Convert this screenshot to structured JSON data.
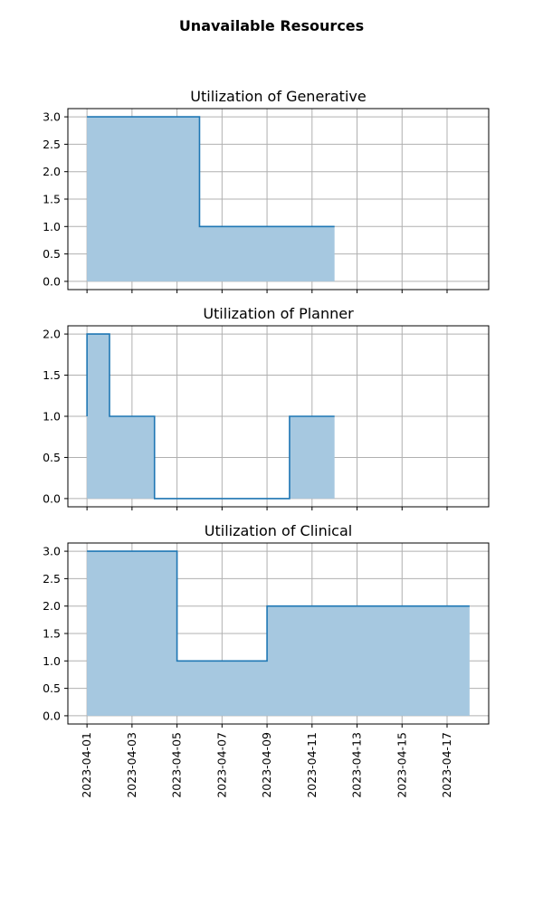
{
  "figure_title": "Unavailable Resources",
  "colors": {
    "line": "#1f77b4",
    "fill": "#a6c8e0",
    "grid": "#b0b0b0"
  },
  "chart_data": [
    {
      "type": "area",
      "title": "Utilization of Generative",
      "x": [
        "2023-04-01",
        "2023-04-06",
        "2023-04-12"
      ],
      "y": [
        3,
        1,
        1
      ],
      "step": "post",
      "ylim": [
        -0.15,
        3.15
      ],
      "yticks": [
        "0.0",
        "0.5",
        "1.0",
        "1.5",
        "2.0",
        "2.5",
        "3.0"
      ],
      "grid": true
    },
    {
      "type": "area",
      "title": "Utilization of Planner",
      "x": [
        "2023-04-01",
        "2023-04-01",
        "2023-04-02",
        "2023-04-04",
        "2023-04-10",
        "2023-04-12"
      ],
      "y": [
        1,
        2,
        1,
        0,
        1,
        1
      ],
      "step": "post",
      "ylim": [
        -0.1,
        2.1
      ],
      "yticks": [
        "0.0",
        "0.5",
        "1.0",
        "1.5",
        "2.0"
      ],
      "grid": true
    },
    {
      "type": "area",
      "title": "Utilization of Clinical",
      "x": [
        "2023-04-01",
        "2023-04-05",
        "2023-04-09",
        "2023-04-18"
      ],
      "y": [
        3,
        1,
        2,
        2
      ],
      "step": "post",
      "ylim": [
        -0.15,
        3.15
      ],
      "yticks": [
        "0.0",
        "0.5",
        "1.0",
        "1.5",
        "2.0",
        "2.5",
        "3.0"
      ],
      "grid": true
    }
  ],
  "x_axis": {
    "shared": true,
    "xlim": [
      "2023-03-31.15",
      "2023-04-18.85"
    ],
    "ticks": [
      "2023-04-01",
      "2023-04-03",
      "2023-04-05",
      "2023-04-07",
      "2023-04-09",
      "2023-04-11",
      "2023-04-13",
      "2023-04-15",
      "2023-04-17"
    ]
  }
}
